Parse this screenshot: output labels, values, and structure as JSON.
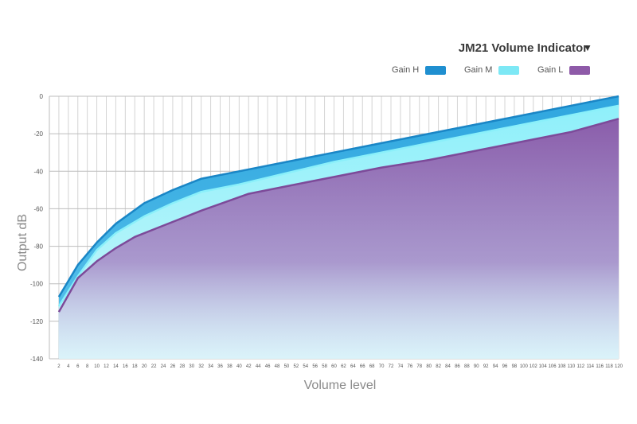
{
  "chart_data": {
    "type": "area",
    "title": "JM21 Volume Indicator",
    "title_caret": "▼",
    "xlabel": "Volume level",
    "ylabel": "Output  dB",
    "xlim": [
      0,
      120
    ],
    "ylim": [
      -140,
      0
    ],
    "y_ticks": [
      0,
      -20,
      -40,
      -60,
      -80,
      -100,
      -120,
      -140
    ],
    "x_ticks": [
      2,
      4,
      6,
      8,
      10,
      12,
      14,
      16,
      18,
      20,
      22,
      24,
      26,
      28,
      30,
      32,
      34,
      36,
      38,
      40,
      42,
      44,
      46,
      48,
      50,
      52,
      54,
      56,
      58,
      60,
      62,
      64,
      66,
      68,
      70,
      72,
      74,
      76,
      78,
      80,
      82,
      84,
      86,
      88,
      90,
      92,
      94,
      96,
      98,
      100,
      102,
      104,
      106,
      108,
      110,
      112,
      114,
      116,
      118,
      120
    ],
    "grid": true,
    "legend_position": "top-right",
    "series": [
      {
        "name": "Gain H",
        "color": "#1f8fd0",
        "x": [
          2,
          6,
          10,
          14,
          20,
          26,
          32,
          40,
          50,
          60,
          70,
          80,
          90,
          100,
          110,
          120
        ],
        "values": [
          -107,
          -90,
          -78,
          -68,
          -57,
          -50,
          -44,
          -40,
          -35,
          -30,
          -25,
          -20,
          -15,
          -10,
          -5,
          0
        ]
      },
      {
        "name": "Gain M",
        "color": "#7de8f5",
        "x": [
          2,
          6,
          10,
          14,
          20,
          26,
          32,
          40,
          50,
          60,
          70,
          80,
          90,
          100,
          110,
          120
        ],
        "values": [
          -112,
          -96,
          -82,
          -73,
          -64,
          -57,
          -51,
          -47,
          -41,
          -35,
          -30,
          -25,
          -20,
          -15,
          -10,
          -5
        ]
      },
      {
        "name": "Gain L",
        "color": "#8e5aa8",
        "x": [
          2,
          6,
          10,
          14,
          18,
          24,
          32,
          42,
          50,
          60,
          70,
          80,
          90,
          100,
          110,
          120
        ],
        "values": [
          -115,
          -97,
          -88,
          -81,
          -75,
          -69,
          -61,
          -52,
          -48,
          -43,
          -38,
          -34,
          -29,
          -24,
          -19,
          -12
        ]
      }
    ]
  }
}
